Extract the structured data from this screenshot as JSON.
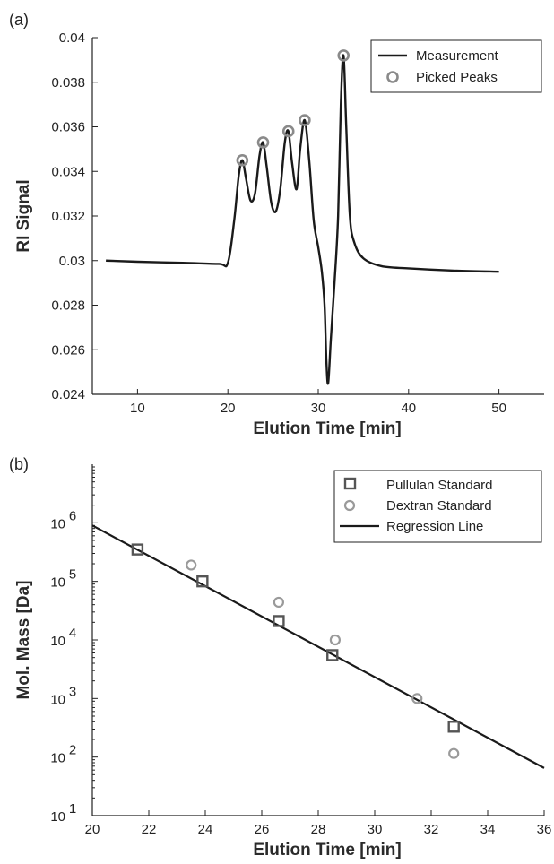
{
  "chart_data": [
    {
      "panel_label": "(a)",
      "type": "line",
      "xlabel": "Elution Time [min]",
      "ylabel": "RI Signal",
      "xlim": [
        5,
        55
      ],
      "ylim": [
        0.024,
        0.04
      ],
      "x_ticks": [
        10,
        20,
        30,
        40,
        50
      ],
      "y_ticks": [
        0.024,
        0.026,
        0.028,
        0.03,
        0.032,
        0.034,
        0.036,
        0.038,
        0.04
      ],
      "x_tick_labels": [
        "10",
        "20",
        "30",
        "40",
        "50"
      ],
      "y_tick_labels": [
        "0.024",
        "0.026",
        "0.028",
        "0.03",
        "0.032",
        "0.034",
        "0.036",
        "0.038",
        "0.04"
      ],
      "grid": false,
      "legend_position": "top-right",
      "series": [
        {
          "name": "Measurement",
          "style": "line",
          "color": "#1a1a1a",
          "x": [
            6.5,
            10,
            15,
            19,
            20,
            20.7,
            21.2,
            21.6,
            22.0,
            22.5,
            23.0,
            23.5,
            23.9,
            24.3,
            24.8,
            25.3,
            25.8,
            26.3,
            26.7,
            27.1,
            27.6,
            28.0,
            28.5,
            29.0,
            29.5,
            30.0,
            30.4,
            30.7,
            30.9,
            31.1,
            31.4,
            31.8,
            32.2,
            32.5,
            32.8,
            33.1,
            33.5,
            34.0,
            35.0,
            37.0,
            40.0,
            45.0,
            50.0
          ],
          "y": [
            0.03,
            0.02995,
            0.0299,
            0.02985,
            0.0299,
            0.0318,
            0.0338,
            0.0345,
            0.0337,
            0.0327,
            0.033,
            0.0347,
            0.0353,
            0.0342,
            0.0326,
            0.0322,
            0.0332,
            0.0353,
            0.0358,
            0.0344,
            0.0332,
            0.035,
            0.0363,
            0.0345,
            0.0318,
            0.0306,
            0.0295,
            0.028,
            0.0255,
            0.0245,
            0.0265,
            0.029,
            0.032,
            0.037,
            0.0392,
            0.036,
            0.032,
            0.0308,
            0.0301,
            0.02975,
            0.02965,
            0.02955,
            0.0295
          ]
        },
        {
          "name": "Picked Peaks",
          "style": "markers",
          "marker": "circle",
          "color": "#8a8a8a",
          "x": [
            21.6,
            23.9,
            26.7,
            28.5,
            32.8
          ],
          "y": [
            0.0345,
            0.0353,
            0.0358,
            0.0363,
            0.0392
          ]
        }
      ]
    },
    {
      "panel_label": "(b)",
      "type": "scatter",
      "xlabel": "Elution Time [min]",
      "ylabel": "Mol. Mass [Da]",
      "xlim": [
        20,
        36
      ],
      "ylim": [
        10,
        10000000
      ],
      "yscale": "log",
      "x_ticks": [
        20,
        22,
        24,
        26,
        28,
        30,
        32,
        34,
        36
      ],
      "x_tick_labels": [
        "20",
        "22",
        "24",
        "26",
        "28",
        "30",
        "32",
        "34",
        "36"
      ],
      "y_tick_labels": [
        {
          "base": "10",
          "exp": "1"
        },
        {
          "base": "10",
          "exp": "2"
        },
        {
          "base": "10",
          "exp": "3"
        },
        {
          "base": "10",
          "exp": "4"
        },
        {
          "base": "10",
          "exp": "5"
        },
        {
          "base": "10",
          "exp": "6"
        }
      ],
      "grid": false,
      "legend_position": "top-right",
      "series": [
        {
          "name": "Pullulan Standard",
          "style": "markers",
          "marker": "square",
          "color": "#555555",
          "x": [
            21.6,
            23.9,
            26.6,
            28.5,
            32.8
          ],
          "y": [
            350000,
            100000,
            21000,
            5500,
            330
          ]
        },
        {
          "name": "Dextran Standard",
          "style": "markers",
          "marker": "circle",
          "color": "#9a9a9a",
          "x": [
            23.5,
            26.6,
            28.6,
            31.5,
            32.8
          ],
          "y": [
            190000,
            44000,
            10000,
            1000,
            115
          ]
        },
        {
          "name": "Regression Line",
          "style": "line",
          "color": "#1a1a1a",
          "x": [
            20,
            36
          ],
          "y": [
            900000,
            65
          ]
        }
      ]
    }
  ]
}
